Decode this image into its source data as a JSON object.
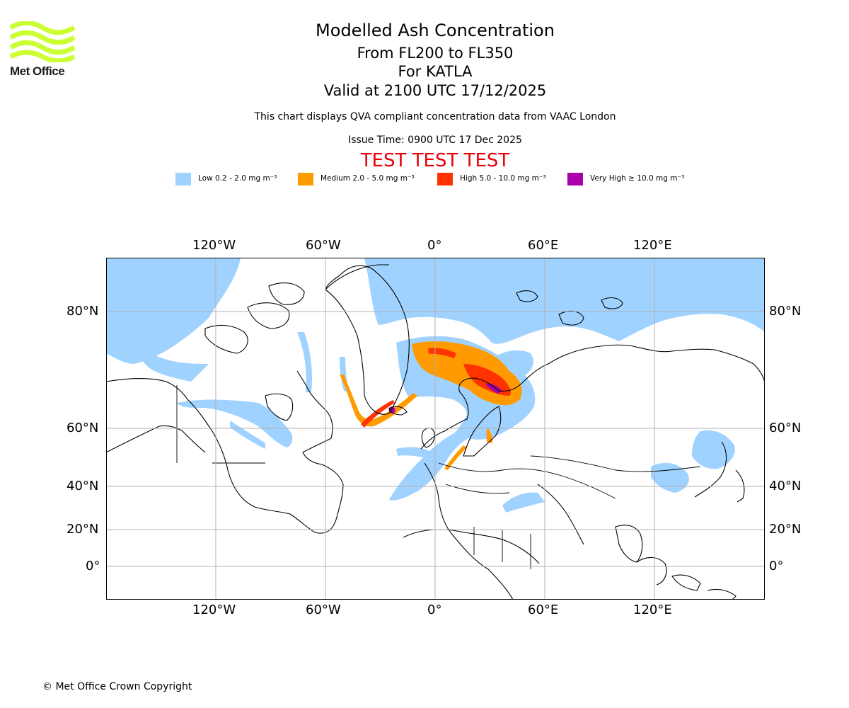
{
  "logo": {
    "text": "Met Office",
    "color": "#ccff33"
  },
  "header": {
    "title": "Modelled Ash Concentration",
    "levels": "From FL200 to FL350",
    "volcano": "For KATLA",
    "valid": "Valid at 2100 UTC 17/12/2025",
    "note": "This chart displays QVA compliant concentration data from VAAC London",
    "issue": "Issue Time: 0900 UTC 17 Dec 2025",
    "test_banner": "TEST TEST TEST"
  },
  "legend": [
    {
      "label": "Low 0.2 - 2.0 mg m⁻³",
      "color": "#a0d2ff"
    },
    {
      "label": "Medium 2.0 - 5.0 mg m⁻³",
      "color": "#ff9b00"
    },
    {
      "label": "High 5.0 - 10.0 mg m⁻³",
      "color": "#ff3300"
    },
    {
      "label": "Very High ≥ 10.0 mg m⁻³",
      "color": "#a800aa"
    }
  ],
  "map": {
    "lon_ticks": [
      "120°W",
      "60°W",
      "0°",
      "60°E",
      "120°E"
    ],
    "lat_ticks": [
      "80°N",
      "60°N",
      "40°N",
      "20°N",
      "0°"
    ]
  },
  "footer": {
    "copyright": "© Met Office Crown Copyright"
  }
}
